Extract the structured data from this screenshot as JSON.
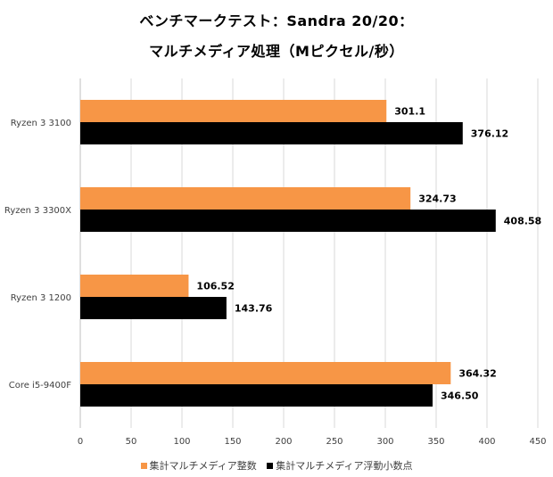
{
  "chart_data": {
    "type": "bar",
    "orientation": "horizontal",
    "title": "ベンチマークテスト：Sandra 20/20：",
    "subtitle": "マルチメディア処理（Mピクセル/秒）",
    "categories": [
      "Ryzen 3 3100",
      "Ryzen 3 3300X",
      "Ryzen 3 1200",
      "Core i5-9400F"
    ],
    "series": [
      {
        "name": "集計マルチメディア整数",
        "color": "#f79646",
        "values": [
          301.1,
          324.73,
          106.52,
          364.32
        ],
        "labels": [
          "301.1",
          "324.73",
          "106.52",
          "364.32"
        ]
      },
      {
        "name": "集計マルチメディア浮動小数点",
        "color": "#000000",
        "values": [
          376.12,
          408.58,
          143.76,
          346.5
        ],
        "labels": [
          "376.12",
          "408.58",
          "143.76",
          "346.50"
        ]
      }
    ],
    "xlim": [
      0,
      450
    ],
    "xticks": [
      0,
      50,
      100,
      150,
      200,
      250,
      300,
      350,
      400,
      450
    ],
    "grid": "vertical",
    "legend": "bottom"
  }
}
